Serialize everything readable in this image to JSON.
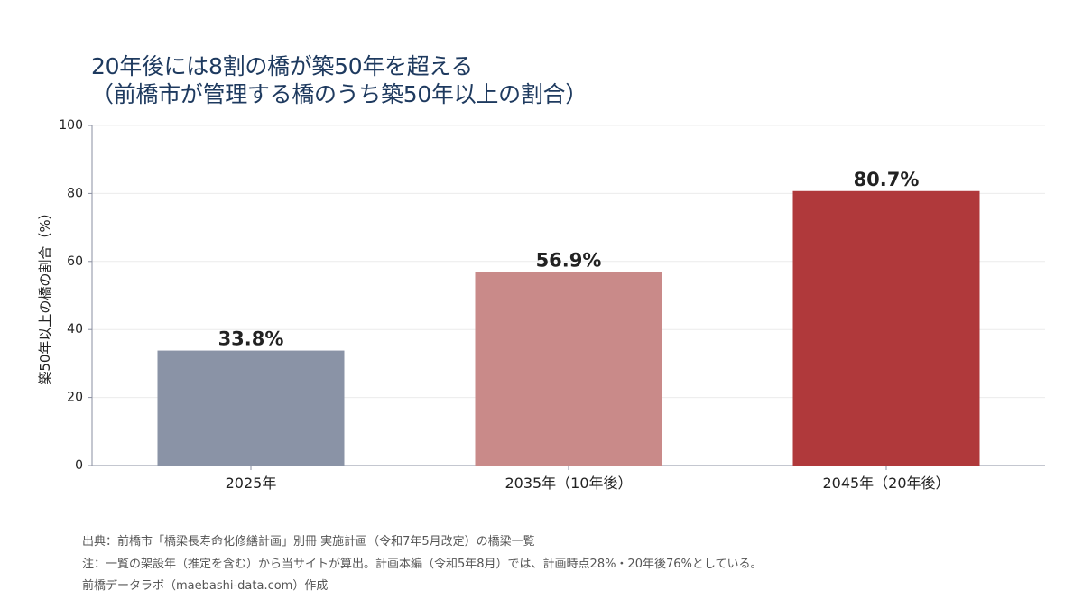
{
  "title_lines": [
    "20年後には8割の橋が築50年を超える",
    "（前橋市が管理する橋のうち築50年以上の割合）"
  ],
  "footer": {
    "source": "出典：前橋市「橋梁長寿命化修繕計画」別冊 実施計画（令和7年5月改定）の橋梁一覧",
    "note": "注：一覧の架設年（推定を含む）から当サイトが算出。計画本編（令和5年8月）では、計画時点28%・20年後76%としている。",
    "credit": "前橋データラボ（maebashi-data.com）作成"
  },
  "chart_data": {
    "type": "bar",
    "categories": [
      "2025年",
      "2035年（10年後）",
      "2045年（20年後）"
    ],
    "values": [
      33.8,
      56.9,
      80.7
    ],
    "data_labels": [
      "33.8%",
      "56.9%",
      "80.7%"
    ],
    "colors": [
      "#8a93a6",
      "#c98a89",
      "#b0393b"
    ],
    "ylabel": "築50年以上の橋の割合（%）",
    "xlabel": "",
    "ylim": [
      0,
      100
    ],
    "yticks": [
      0,
      20,
      40,
      60,
      80,
      100
    ],
    "grid": true
  }
}
